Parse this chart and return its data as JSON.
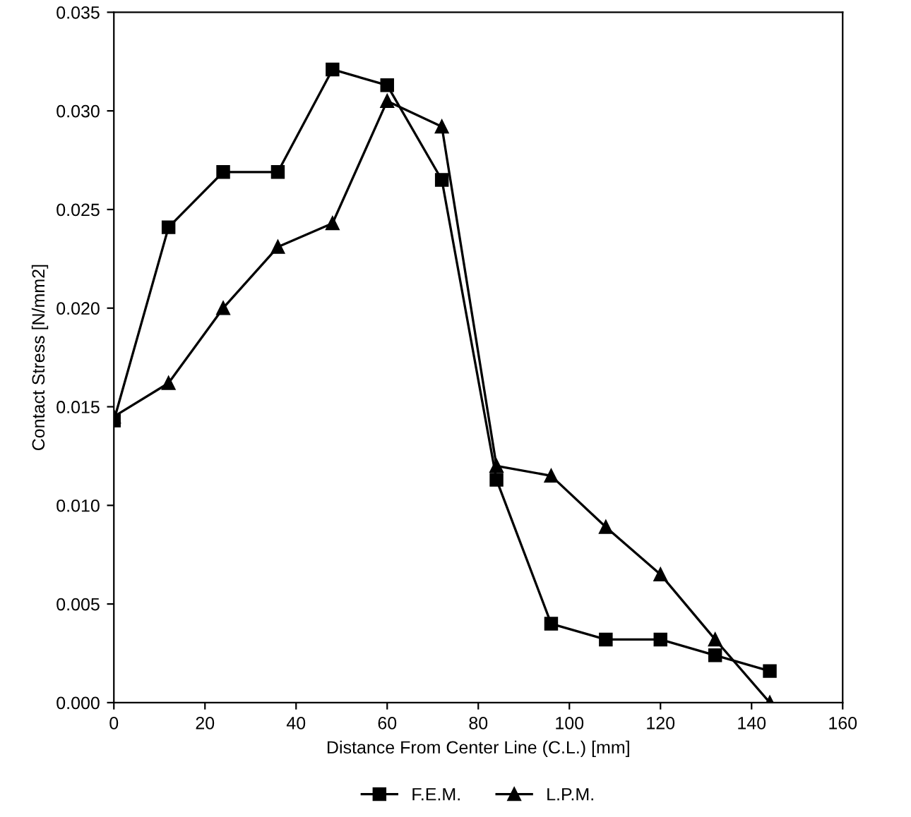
{
  "chart_data": {
    "type": "line",
    "xlabel": "Distance From Center Line (C.L.) [mm]",
    "ylabel": "Contact Stress [N/mm2]",
    "x": [
      0,
      12,
      24,
      36,
      48,
      60,
      72,
      84,
      96,
      108,
      120,
      132,
      144
    ],
    "series": [
      {
        "name": "F.E.M.",
        "color": "#000000",
        "marker": "square",
        "values": [
          0.0143,
          0.0241,
          0.0269,
          0.0269,
          0.0321,
          0.0313,
          0.0265,
          0.0113,
          0.004,
          0.0032,
          0.0032,
          0.0024,
          0.0016
        ]
      },
      {
        "name": "L.P.M.",
        "color": "#000000",
        "marker": "triangle",
        "values": [
          0.0145,
          0.0162,
          0.02,
          0.0231,
          0.0243,
          0.0305,
          0.0292,
          0.012,
          0.0115,
          0.0089,
          0.0065,
          0.0032,
          0.0
        ]
      }
    ],
    "xlim": [
      0,
      160
    ],
    "xticks": [
      0,
      20,
      40,
      60,
      80,
      100,
      120,
      140,
      160
    ],
    "ylim": [
      0,
      0.035
    ],
    "yticks": [
      {
        "value": 0,
        "label": "0.000"
      },
      {
        "value": 0.005,
        "label": "0.005"
      },
      {
        "value": 0.01,
        "label": "0.010"
      },
      {
        "value": 0.015,
        "label": "0.015"
      },
      {
        "value": 0.02,
        "label": "0.020"
      },
      {
        "value": 0.025,
        "label": "0.025"
      },
      {
        "value": 0.03,
        "label": "0.030"
      },
      {
        "value": 0.035,
        "label": "0.035"
      }
    ],
    "grid": false,
    "legend": "bottom",
    "line_style": "solid"
  }
}
